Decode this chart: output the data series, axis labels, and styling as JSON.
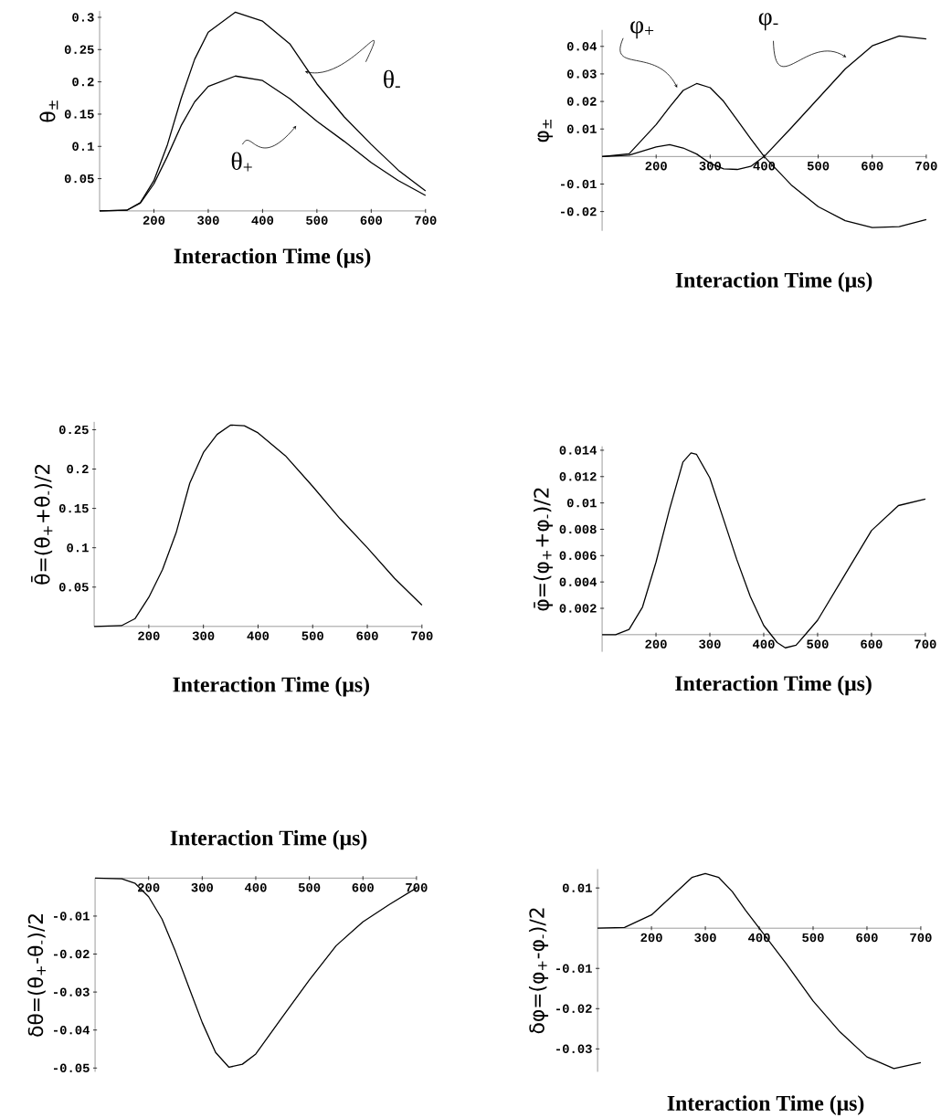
{
  "chart_data": [
    {
      "type": "line",
      "xlabel": "Interaction Time (μs)",
      "ylabel": "θ$_{±}$",
      "xlim": [
        100,
        700
      ],
      "ylim": [
        0,
        0.31
      ],
      "xticks": [
        200,
        300,
        400,
        500,
        600,
        700
      ],
      "yticks": [
        0.05,
        0.1,
        0.15,
        0.2,
        0.25,
        0.3
      ],
      "x": [
        100,
        150,
        175,
        200,
        225,
        250,
        275,
        300,
        350,
        400,
        450,
        500,
        550,
        600,
        650,
        700
      ],
      "series": [
        {
          "name": "θ$_{-}$",
          "color": "#000000",
          "values": [
            0,
            0.001,
            0.013,
            0.047,
            0.103,
            0.174,
            0.235,
            0.277,
            0.308,
            0.294,
            0.259,
            0.197,
            0.146,
            0.103,
            0.063,
            0.031
          ]
        },
        {
          "name": "θ$_{+}$",
          "color": "#000000",
          "values": [
            0,
            0.001,
            0.012,
            0.042,
            0.085,
            0.132,
            0.169,
            0.193,
            0.209,
            0.202,
            0.174,
            0.139,
            0.108,
            0.075,
            0.047,
            0.024
          ]
        }
      ]
    },
    {
      "type": "line",
      "xlabel": "Interaction Time (μs)",
      "ylabel": "φ$_{±}$",
      "xlim": [
        100,
        700
      ],
      "ylim": [
        -0.027,
        0.046
      ],
      "xticks": [
        200,
        300,
        400,
        500,
        600,
        700
      ],
      "yticks": [
        -0.02,
        -0.01,
        0.01,
        0.02,
        0.03,
        0.04
      ],
      "x": [
        100,
        150,
        200,
        225,
        250,
        275,
        300,
        325,
        350,
        375,
        400,
        450,
        500,
        550,
        600,
        650,
        700
      ],
      "series": [
        {
          "name": "φ$_{+}$",
          "color": "#000000",
          "values": [
            0,
            0.001,
            0.0116,
            0.018,
            0.024,
            0.0265,
            0.025,
            0.02,
            0.0133,
            0.0065,
            0,
            -0.0103,
            -0.0182,
            -0.0233,
            -0.0258,
            -0.0255,
            -0.0229
          ]
        },
        {
          "name": "φ$_{-}$",
          "color": "#000000",
          "values": [
            0,
            0.0005,
            0.0035,
            0.0043,
            0.0031,
            0.0009,
            -0.0025,
            -0.0045,
            -0.0047,
            -0.0036,
            0,
            0.0104,
            0.0211,
            0.0318,
            0.0402,
            0.0438,
            0.0427
          ]
        }
      ]
    },
    {
      "type": "line",
      "xlabel": "Interaction Time (μs)",
      "ylabel": "θ̄=(θ$_{+}$+θ$_{-}$)/2",
      "xlim": [
        100,
        700
      ],
      "ylim": [
        0,
        0.26
      ],
      "xticks": [
        200,
        300,
        400,
        500,
        600,
        700
      ],
      "yticks": [
        0.05,
        0.1,
        0.15,
        0.2,
        0.25
      ],
      "x": [
        100,
        150,
        175,
        200,
        225,
        250,
        275,
        300,
        325,
        350,
        375,
        400,
        450,
        500,
        550,
        600,
        650,
        700
      ],
      "series": [
        {
          "color": "#000000",
          "values": [
            0,
            0.001,
            0.01,
            0.037,
            0.072,
            0.119,
            0.182,
            0.221,
            0.244,
            0.256,
            0.255,
            0.246,
            0.217,
            0.178,
            0.137,
            0.1,
            0.061,
            0.027
          ]
        }
      ]
    },
    {
      "type": "line",
      "xlabel": "Interaction Time (μs)",
      "ylabel": "φ̄=(φ$_{+}$+φ$_{-}$)/2",
      "xlim": [
        100,
        700
      ],
      "ylim": [
        -0.0013,
        0.0143
      ],
      "xticks": [
        200,
        300,
        400,
        500,
        600,
        700
      ],
      "yticks": [
        0.002,
        0.004,
        0.006,
        0.008,
        0.01,
        0.012,
        0.014
      ],
      "x": [
        100,
        125,
        150,
        175,
        200,
        225,
        250,
        265,
        275,
        300,
        325,
        350,
        375,
        400,
        425,
        440,
        460,
        475,
        500,
        550,
        600,
        650,
        700
      ],
      "series": [
        {
          "color": "#000000",
          "values": [
            0,
            0,
            0.0004,
            0.0021,
            0.0055,
            0.0095,
            0.0131,
            0.0138,
            0.0137,
            0.0119,
            0.0088,
            0.0057,
            0.0029,
            0.0007,
            -0.0006,
            -0.001,
            -0.0008,
            -0.0001,
            0.0011,
            0.0045,
            0.0079,
            0.0098,
            0.0103
          ]
        }
      ]
    },
    {
      "type": "line",
      "xlabel": "Interaction Time (μs)",
      "ylabel": "δθ=(θ$_{+}$-θ$_{-}$)/2",
      "xlim": [
        100,
        700
      ],
      "ylim": [
        -0.051,
        0
      ],
      "xticks": [
        200,
        300,
        400,
        500,
        600,
        700
      ],
      "yticks": [
        -0.05,
        -0.04,
        -0.03,
        -0.02,
        -0.01
      ],
      "x": [
        100,
        150,
        175,
        200,
        225,
        250,
        275,
        300,
        325,
        350,
        375,
        400,
        450,
        500,
        550,
        600,
        650,
        700
      ],
      "series": [
        {
          "color": "#000000",
          "values": [
            0,
            -0.0002,
            -0.0014,
            -0.0049,
            -0.0108,
            -0.0193,
            -0.0287,
            -0.038,
            -0.0459,
            -0.0498,
            -0.049,
            -0.0463,
            -0.0365,
            -0.0268,
            -0.0178,
            -0.0115,
            -0.0069,
            -0.0026
          ]
        }
      ]
    },
    {
      "type": "line",
      "xlabel": "Interaction Time (μs)",
      "ylabel": "δφ=(φ$_{+}$-φ$_{-}$)/2",
      "xlim": [
        100,
        700
      ],
      "ylim": [
        -0.0357,
        0.0147
      ],
      "xticks": [
        200,
        300,
        400,
        500,
        600,
        700
      ],
      "yticks": [
        -0.03,
        -0.02,
        -0.01,
        0.01
      ],
      "x": [
        100,
        150,
        200,
        250,
        275,
        300,
        325,
        350,
        375,
        400,
        450,
        500,
        550,
        600,
        650,
        700
      ],
      "series": [
        {
          "color": "#000000",
          "values": [
            0,
            0.0002,
            0.0033,
            0.0095,
            0.0126,
            0.0136,
            0.0126,
            0.0091,
            0.0044,
            0,
            -0.0088,
            -0.0181,
            -0.0258,
            -0.032,
            -0.0349,
            -0.0334
          ]
        }
      ]
    }
  ]
}
